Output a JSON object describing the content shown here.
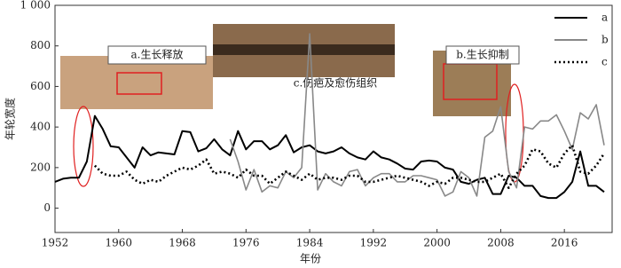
{
  "chart_data": {
    "type": "line",
    "x_label": "年份",
    "y_label": "年轮宽度",
    "x": [
      1952,
      1953,
      1954,
      1955,
      1956,
      1957,
      1958,
      1959,
      1960,
      1961,
      1962,
      1963,
      1964,
      1965,
      1966,
      1967,
      1968,
      1969,
      1970,
      1971,
      1972,
      1973,
      1974,
      1975,
      1976,
      1977,
      1978,
      1979,
      1980,
      1981,
      1982,
      1983,
      1984,
      1985,
      1986,
      1987,
      1988,
      1989,
      1990,
      1991,
      1992,
      1993,
      1994,
      1995,
      1996,
      1997,
      1998,
      1999,
      2000,
      2001,
      2002,
      2003,
      2004,
      2005,
      2006,
      2007,
      2008,
      2009,
      2010,
      2011,
      2012,
      2013,
      2014,
      2015,
      2016,
      2017,
      2018,
      2019,
      2020,
      2021
    ],
    "series": [
      {
        "name": "a",
        "color": "#000000",
        "style": "solid",
        "values": [
          130,
          145,
          150,
          150,
          230,
          455,
          390,
          305,
          300,
          250,
          200,
          300,
          260,
          275,
          270,
          265,
          380,
          375,
          280,
          295,
          340,
          290,
          260,
          380,
          290,
          330,
          330,
          290,
          310,
          360,
          275,
          300,
          310,
          280,
          270,
          280,
          300,
          270,
          250,
          240,
          280,
          250,
          240,
          220,
          195,
          190,
          230,
          235,
          230,
          200,
          190,
          130,
          120,
          140,
          150,
          70,
          70,
          160,
          150,
          110,
          110,
          60,
          50,
          50,
          80,
          130,
          280,
          110,
          110,
          80
        ]
      },
      {
        "name": "b",
        "color": "#888888",
        "style": "solid",
        "values": [
          null,
          null,
          null,
          null,
          null,
          null,
          null,
          null,
          null,
          null,
          null,
          null,
          null,
          null,
          null,
          null,
          null,
          null,
          null,
          null,
          null,
          null,
          340,
          230,
          90,
          190,
          80,
          110,
          100,
          180,
          150,
          200,
          860,
          90,
          170,
          130,
          110,
          180,
          190,
          110,
          150,
          170,
          170,
          130,
          130,
          160,
          160,
          150,
          140,
          60,
          80,
          180,
          150,
          60,
          350,
          380,
          500,
          180,
          100,
          400,
          390,
          430,
          430,
          460,
          380,
          290,
          470,
          440,
          510,
          310
        ]
      },
      {
        "name": "c",
        "color": "#000000",
        "style": "dotted",
        "values": [
          null,
          null,
          null,
          null,
          null,
          210,
          170,
          160,
          160,
          180,
          140,
          120,
          140,
          130,
          160,
          180,
          200,
          190,
          210,
          240,
          170,
          180,
          170,
          150,
          190,
          160,
          160,
          120,
          150,
          180,
          160,
          140,
          170,
          140,
          150,
          150,
          140,
          160,
          160,
          130,
          130,
          140,
          150,
          160,
          150,
          140,
          130,
          110,
          130,
          120,
          150,
          150,
          140,
          130,
          130,
          150,
          170,
          100,
          170,
          210,
          290,
          280,
          220,
          200,
          270,
          310,
          180,
          170,
          210,
          270
        ]
      }
    ],
    "xlim": [
      1952,
      2022
    ],
    "xticks": [
      1952,
      1960,
      1968,
      1976,
      1984,
      1992,
      2000,
      2008,
      2016
    ],
    "ylim": [
      -120,
      1000
    ],
    "yticks": [
      0,
      200,
      400,
      600,
      800,
      {
        "value": 1000,
        "label": "1 000"
      }
    ],
    "annotations": [
      "a.生长释放",
      "c.伤疤及愈伤组织",
      "b.生长抑制"
    ]
  }
}
